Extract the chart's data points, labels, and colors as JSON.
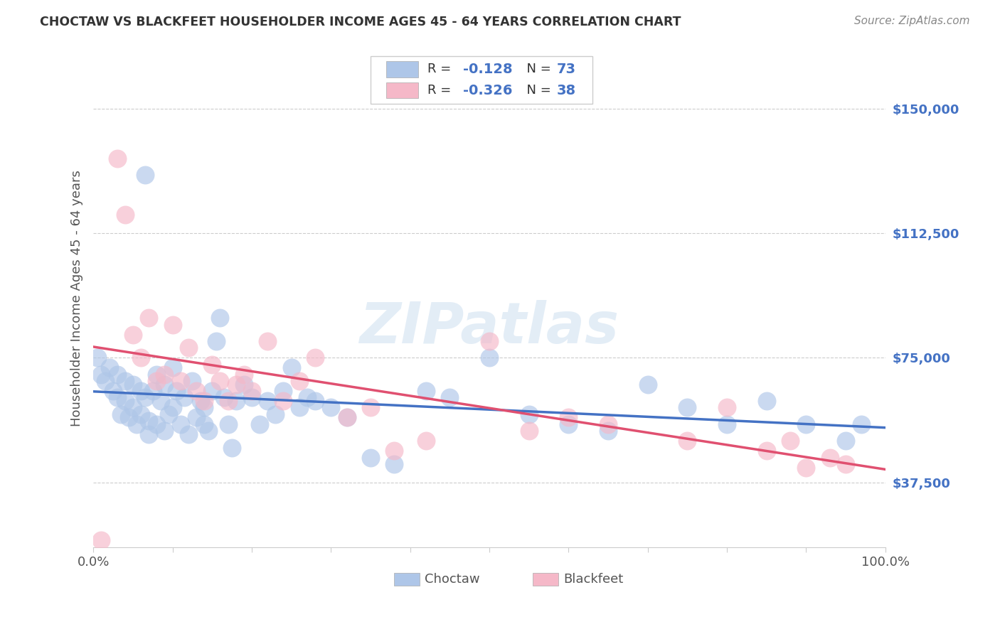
{
  "title": "CHOCTAW VS BLACKFEET HOUSEHOLDER INCOME AGES 45 - 64 YEARS CORRELATION CHART",
  "source": "Source: ZipAtlas.com",
  "ylabel": "Householder Income Ages 45 - 64 years",
  "xlim": [
    0,
    1.0
  ],
  "ylim": [
    18000,
    168000
  ],
  "yticks": [
    37500,
    75000,
    112500,
    150000
  ],
  "ytick_labels": [
    "$37,500",
    "$75,000",
    "$112,500",
    "$150,000"
  ],
  "choctaw_color": "#aec6e8",
  "blackfeet_color": "#f5b8c8",
  "choctaw_line_color": "#4472c4",
  "blackfeet_line_color": "#e05070",
  "choctaw_R": -0.128,
  "choctaw_N": 73,
  "blackfeet_R": -0.326,
  "blackfeet_N": 38,
  "choctaw_x": [
    0.005,
    0.01,
    0.015,
    0.02,
    0.025,
    0.03,
    0.03,
    0.035,
    0.04,
    0.04,
    0.045,
    0.05,
    0.05,
    0.055,
    0.06,
    0.06,
    0.065,
    0.065,
    0.07,
    0.07,
    0.075,
    0.08,
    0.08,
    0.085,
    0.09,
    0.09,
    0.095,
    0.1,
    0.1,
    0.105,
    0.11,
    0.115,
    0.12,
    0.125,
    0.13,
    0.135,
    0.14,
    0.14,
    0.145,
    0.15,
    0.155,
    0.16,
    0.165,
    0.17,
    0.175,
    0.18,
    0.19,
    0.2,
    0.21,
    0.22,
    0.23,
    0.24,
    0.25,
    0.26,
    0.27,
    0.28,
    0.3,
    0.32,
    0.35,
    0.38,
    0.42,
    0.45,
    0.5,
    0.55,
    0.6,
    0.65,
    0.7,
    0.75,
    0.8,
    0.85,
    0.9,
    0.95,
    0.97
  ],
  "choctaw_y": [
    75000,
    70000,
    68000,
    72000,
    65000,
    70000,
    63000,
    58000,
    68000,
    62000,
    57000,
    67000,
    60000,
    55000,
    65000,
    58000,
    130000,
    63000,
    56000,
    52000,
    65000,
    55000,
    70000,
    62000,
    53000,
    67000,
    58000,
    72000,
    60000,
    65000,
    55000,
    63000,
    52000,
    68000,
    57000,
    62000,
    55000,
    60000,
    53000,
    65000,
    80000,
    87000,
    63000,
    55000,
    48000,
    62000,
    67000,
    63000,
    55000,
    62000,
    58000,
    65000,
    72000,
    60000,
    63000,
    62000,
    60000,
    57000,
    45000,
    43000,
    65000,
    63000,
    75000,
    58000,
    55000,
    53000,
    67000,
    60000,
    55000,
    62000,
    55000,
    50000,
    55000
  ],
  "blackfeet_x": [
    0.01,
    0.03,
    0.04,
    0.05,
    0.06,
    0.07,
    0.08,
    0.09,
    0.1,
    0.11,
    0.12,
    0.13,
    0.14,
    0.15,
    0.16,
    0.17,
    0.18,
    0.19,
    0.2,
    0.22,
    0.24,
    0.26,
    0.28,
    0.32,
    0.35,
    0.38,
    0.42,
    0.5,
    0.55,
    0.6,
    0.65,
    0.75,
    0.8,
    0.85,
    0.88,
    0.9,
    0.93,
    0.95
  ],
  "blackfeet_y": [
    20000,
    135000,
    118000,
    82000,
    75000,
    87000,
    68000,
    70000,
    85000,
    68000,
    78000,
    65000,
    62000,
    73000,
    68000,
    62000,
    67000,
    70000,
    65000,
    80000,
    62000,
    68000,
    75000,
    57000,
    60000,
    47000,
    50000,
    80000,
    53000,
    57000,
    55000,
    50000,
    60000,
    47000,
    50000,
    42000,
    45000,
    43000
  ],
  "watermark": "ZIPatlas",
  "background_color": "#ffffff",
  "grid_color": "#cccccc"
}
